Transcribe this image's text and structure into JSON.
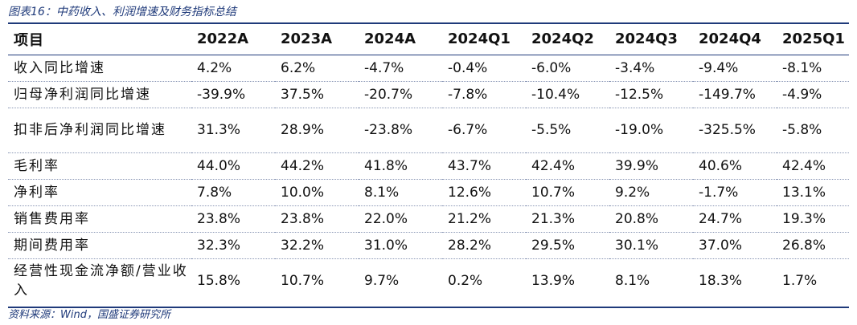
{
  "title": "图表16：中药收入、利润增速及财务指标总结",
  "source": "资料来源：Wind，国盛证券研究所",
  "table": {
    "corner": "项目",
    "columns": [
      "2022A",
      "2023A",
      "2024A",
      "2024Q1",
      "2024Q2",
      "2024Q3",
      "2024Q4",
      "2025Q1"
    ],
    "rows": [
      {
        "label": "收入同比增速",
        "values": [
          "4.2%",
          "6.2%",
          "-4.7%",
          "-0.4%",
          "-6.0%",
          "-3.4%",
          "-9.4%",
          "-8.1%"
        ]
      },
      {
        "label": "归母净利润同比增速",
        "values": [
          "-39.9%",
          "37.5%",
          "-20.7%",
          "-7.8%",
          "-10.4%",
          "-12.5%",
          "-149.7%",
          "-4.9%"
        ]
      },
      {
        "label": "扣非后净利润同比增速",
        "values": [
          "31.3%",
          "28.9%",
          "-23.8%",
          "-6.7%",
          "-5.5%",
          "-19.0%",
          "-325.5%",
          "-5.8%"
        ]
      },
      {
        "label": "毛利率",
        "values": [
          "44.0%",
          "44.2%",
          "41.8%",
          "43.7%",
          "42.4%",
          "39.9%",
          "40.6%",
          "42.4%"
        ]
      },
      {
        "label": "净利率",
        "values": [
          "7.8%",
          "10.0%",
          "8.1%",
          "12.6%",
          "10.7%",
          "9.2%",
          "-1.7%",
          "13.1%"
        ]
      },
      {
        "label": "销售费用率",
        "values": [
          "23.8%",
          "23.8%",
          "22.0%",
          "21.2%",
          "21.3%",
          "20.8%",
          "24.7%",
          "19.3%"
        ]
      },
      {
        "label": "期间费用率",
        "values": [
          "32.3%",
          "32.2%",
          "31.0%",
          "28.2%",
          "29.5%",
          "30.1%",
          "37.0%",
          "26.8%"
        ]
      },
      {
        "label": "经营性现金流净额/营业收入",
        "values": [
          "15.8%",
          "10.7%",
          "9.7%",
          "0.2%",
          "13.9%",
          "8.1%",
          "18.3%",
          "1.7%"
        ]
      }
    ]
  }
}
